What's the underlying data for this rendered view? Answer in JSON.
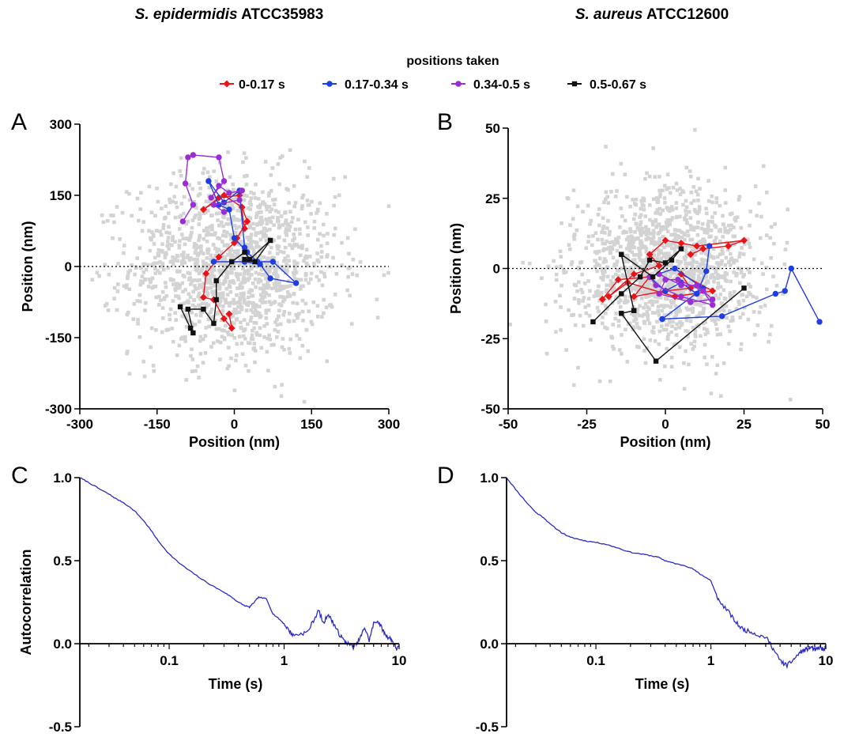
{
  "figure": {
    "col_titles": [
      {
        "species": "S. epidermidis",
        "strain": "ATCC35983"
      },
      {
        "species": "S. aureus",
        "strain": "ATCC12600"
      }
    ],
    "legend_title": "positions taken"
  },
  "colors": {
    "cloud": "#d3d3d3",
    "red": "#e8141a",
    "blue": "#1f3ee0",
    "purple": "#9a2ed4",
    "black": "#111111",
    "autocorr_line": "#2b2bc4"
  },
  "chart_data": [
    {
      "panel": "A",
      "type": "scatter",
      "title": "S. epidermidis ATCC35983",
      "xlabel": "Position (nm)",
      "ylabel": "Position (nm)",
      "xlim": [
        -300,
        300
      ],
      "ylim": [
        -300,
        300
      ],
      "xticks": [
        -300,
        -150,
        0,
        150,
        300
      ],
      "yticks": [
        -300,
        -150,
        0,
        150,
        300
      ],
      "zero_line": "dotted",
      "background_cloud": {
        "color": "grey",
        "n_points": 1400,
        "center": [
          0,
          0
        ],
        "spread_sd": 95
      },
      "legend_title": "positions taken",
      "series": [
        {
          "name": "0-0.17 s",
          "color": "red",
          "points": [
            [
              -10,
              -100
            ],
            [
              -5,
              -130
            ],
            [
              -20,
              -110
            ],
            [
              -40,
              -70
            ],
            [
              -60,
              -65
            ],
            [
              -55,
              -15
            ],
            [
              -30,
              20
            ],
            [
              0,
              50
            ],
            [
              5,
              60
            ],
            [
              25,
              95
            ],
            [
              15,
              125
            ],
            [
              -20,
              150
            ],
            [
              -60,
              120
            ],
            [
              -30,
              145
            ],
            [
              10,
              150
            ],
            [
              20,
              80
            ]
          ]
        },
        {
          "name": "0.17-0.34 s",
          "color": "blue",
          "points": [
            [
              -40,
              10
            ],
            [
              20,
              10
            ],
            [
              50,
              5
            ],
            [
              70,
              -25
            ],
            [
              120,
              -35
            ],
            [
              75,
              10
            ],
            [
              45,
              10
            ],
            [
              25,
              30
            ],
            [
              0,
              60
            ],
            [
              -10,
              120
            ],
            [
              -30,
              130
            ],
            [
              -50,
              180
            ],
            [
              -20,
              135
            ],
            [
              10,
              160
            ],
            [
              20,
              40
            ]
          ]
        },
        {
          "name": "0.34-0.5 s",
          "color": "purple",
          "points": [
            [
              -100,
              95
            ],
            [
              -80,
              130
            ],
            [
              -95,
              175
            ],
            [
              -90,
              230
            ],
            [
              -80,
              235
            ],
            [
              -30,
              230
            ],
            [
              -20,
              180
            ],
            [
              -45,
              145
            ],
            [
              -30,
              170
            ],
            [
              -10,
              155
            ],
            [
              15,
              160
            ],
            [
              10,
              140
            ],
            [
              -40,
              130
            ],
            [
              -20,
              115
            ]
          ]
        },
        {
          "name": "0.5-0.67 s",
          "color": "black",
          "points": [
            [
              -105,
              -85
            ],
            [
              -85,
              -130
            ],
            [
              -80,
              -140
            ],
            [
              -90,
              -90
            ],
            [
              -60,
              -90
            ],
            [
              -40,
              -120
            ],
            [
              -35,
              -70
            ],
            [
              -35,
              -30
            ],
            [
              -5,
              10
            ],
            [
              20,
              30
            ],
            [
              30,
              15
            ],
            [
              70,
              55
            ],
            [
              40,
              10
            ],
            [
              20,
              15
            ]
          ]
        }
      ]
    },
    {
      "panel": "B",
      "type": "scatter",
      "title": "S. aureus ATCC12600",
      "xlabel": "Position (nm)",
      "ylabel": "Position (nm)",
      "xlim": [
        -50,
        50
      ],
      "ylim": [
        -50,
        50
      ],
      "xticks": [
        -50,
        -25,
        0,
        25,
        50
      ],
      "yticks": [
        -50,
        -25,
        0,
        25,
        50
      ],
      "zero_line": "dotted",
      "background_cloud": {
        "color": "grey",
        "n_points": 1400,
        "center": [
          0,
          0
        ],
        "spread_sd": 14
      },
      "legend_title": "positions taken",
      "series": [
        {
          "name": "0-0.17 s",
          "color": "red",
          "points": [
            [
              -20,
              -11
            ],
            [
              -15,
              -4
            ],
            [
              -5,
              -3
            ],
            [
              -10,
              -10
            ],
            [
              0,
              -8
            ],
            [
              8,
              -7
            ],
            [
              5,
              -2
            ],
            [
              15,
              -8
            ],
            [
              3,
              -10
            ],
            [
              -12,
              -5
            ],
            [
              -18,
              -10
            ],
            [
              -10,
              -2
            ],
            [
              -2,
              1
            ],
            [
              -5,
              5
            ],
            [
              0,
              10
            ],
            [
              5,
              9
            ],
            [
              10,
              8
            ],
            [
              25,
              10
            ],
            [
              20,
              8
            ],
            [
              12,
              7
            ],
            [
              8,
              5
            ]
          ]
        },
        {
          "name": "0.17-0.34 s",
          "color": "blue",
          "points": [
            [
              14,
              8
            ],
            [
              13,
              -1
            ],
            [
              10,
              -9
            ],
            [
              5,
              -5
            ],
            [
              0,
              -8
            ],
            [
              -5,
              -3
            ],
            [
              3,
              0
            ],
            [
              12,
              -7
            ],
            [
              -1,
              -18
            ],
            [
              18,
              -17
            ],
            [
              35,
              -9
            ],
            [
              38,
              -8
            ],
            [
              40,
              0
            ],
            [
              49,
              -19
            ]
          ]
        },
        {
          "name": "0.34-0.5 s",
          "color": "purple",
          "points": [
            [
              -2,
              -2
            ],
            [
              5,
              -6
            ],
            [
              10,
              -6
            ],
            [
              15,
              -11
            ],
            [
              8,
              -12
            ],
            [
              -2,
              -9
            ],
            [
              0,
              -4
            ],
            [
              4,
              -4
            ],
            [
              12,
              -8
            ],
            [
              15,
              -13
            ],
            [
              5,
              -10
            ],
            [
              -3,
              -6
            ],
            [
              -5,
              -3
            ]
          ]
        },
        {
          "name": "0.5-0.67 s",
          "color": "black",
          "points": [
            [
              -23,
              -19
            ],
            [
              -14,
              -9
            ],
            [
              -8,
              -3
            ],
            [
              -5,
              3
            ],
            [
              0,
              2
            ],
            [
              5,
              7
            ],
            [
              2,
              3
            ],
            [
              -4,
              -3
            ],
            [
              -14,
              5
            ],
            [
              -10,
              -15
            ],
            [
              -14,
              -16
            ],
            [
              -3,
              -33
            ],
            [
              25,
              -7
            ]
          ]
        }
      ]
    },
    {
      "panel": "C",
      "type": "line",
      "xlabel": "Time (s)",
      "ylabel": "Autocorrelation",
      "xscale": "log",
      "xlim": [
        0.0167,
        10
      ],
      "ylim": [
        -0.5,
        1.0
      ],
      "xticks": [
        "0.1",
        "1",
        "10"
      ],
      "yticks": [
        "-0.5",
        "0.0",
        "0.5",
        "1.0"
      ],
      "series": [
        {
          "color": "autocorr_line",
          "x": [
            0.0167,
            0.02,
            0.025,
            0.03,
            0.035,
            0.04,
            0.05,
            0.06,
            0.07,
            0.08,
            0.1,
            0.12,
            0.15,
            0.2,
            0.25,
            0.3,
            0.35,
            0.4,
            0.45,
            0.5,
            0.55,
            0.6,
            0.7,
            0.8,
            0.9,
            1.0,
            1.1,
            1.2,
            1.4,
            1.6,
            1.8,
            2.0,
            2.2,
            2.4,
            2.6,
            2.8,
            3.0,
            3.3,
            3.6,
            4.0,
            4.3,
            4.7,
            5.0,
            5.5,
            6.0,
            6.5,
            7.0,
            7.5,
            8.0,
            8.5,
            9.0,
            9.5,
            10
          ],
          "y": [
            1.0,
            0.97,
            0.93,
            0.9,
            0.87,
            0.85,
            0.8,
            0.74,
            0.68,
            0.62,
            0.54,
            0.49,
            0.44,
            0.38,
            0.34,
            0.31,
            0.28,
            0.25,
            0.23,
            0.22,
            0.25,
            0.28,
            0.27,
            0.18,
            0.15,
            0.12,
            0.08,
            0.05,
            0.06,
            0.07,
            0.14,
            0.2,
            0.12,
            0.18,
            0.14,
            0.1,
            0.06,
            0.02,
            0.0,
            -0.02,
            0.0,
            0.05,
            0.1,
            0.02,
            0.12,
            0.14,
            0.1,
            0.06,
            0.04,
            0.03,
            0.0,
            -0.03,
            -0.02
          ]
        }
      ]
    },
    {
      "panel": "D",
      "type": "line",
      "xlabel": "Time (s)",
      "ylabel": "",
      "xscale": "log",
      "xlim": [
        0.0167,
        10
      ],
      "ylim": [
        -0.5,
        1.0
      ],
      "xticks": [
        "0.1",
        "1",
        "10"
      ],
      "yticks": [
        "-0.5",
        "0.0",
        "0.5",
        "1.0"
      ],
      "series": [
        {
          "color": "autocorr_line",
          "x": [
            0.0167,
            0.02,
            0.025,
            0.03,
            0.035,
            0.04,
            0.05,
            0.06,
            0.07,
            0.08,
            0.1,
            0.12,
            0.15,
            0.2,
            0.25,
            0.3,
            0.35,
            0.4,
            0.45,
            0.5,
            0.6,
            0.7,
            0.8,
            0.9,
            1.0,
            1.1,
            1.2,
            1.4,
            1.6,
            1.8,
            2.0,
            2.3,
            2.6,
            3.0,
            3.3,
            3.6,
            4.0,
            4.3,
            4.6,
            5.0,
            5.5,
            6.0,
            6.5,
            7.0,
            7.5,
            8.0,
            8.5,
            9.0,
            9.5,
            10
          ],
          "y": [
            1.0,
            0.93,
            0.85,
            0.79,
            0.76,
            0.72,
            0.67,
            0.64,
            0.63,
            0.62,
            0.61,
            0.6,
            0.58,
            0.55,
            0.54,
            0.53,
            0.52,
            0.5,
            0.49,
            0.48,
            0.47,
            0.45,
            0.42,
            0.4,
            0.38,
            0.3,
            0.25,
            0.2,
            0.14,
            0.1,
            0.08,
            0.07,
            0.05,
            0.04,
            0.0,
            -0.05,
            -0.1,
            -0.12,
            -0.13,
            -0.11,
            -0.08,
            -0.05,
            -0.04,
            -0.03,
            -0.02,
            -0.04,
            -0.03,
            -0.02,
            -0.04,
            -0.02
          ]
        }
      ]
    }
  ]
}
